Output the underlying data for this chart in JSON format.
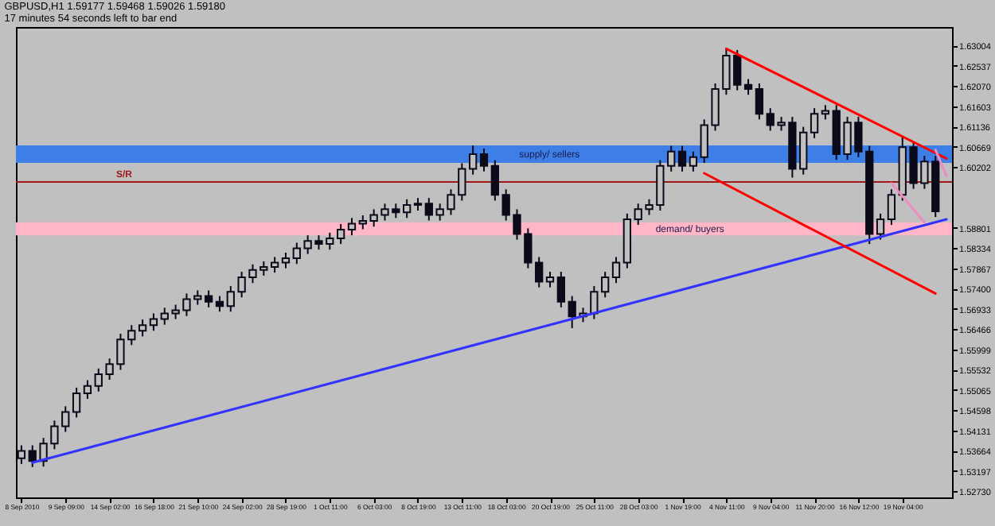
{
  "chart_data": {
    "type": "candlestick",
    "title": "GBPUSD,H1  1.59177 1.59468 1.59026 1.59180",
    "subtitle": "17 minutes 54 seconds left to bar end",
    "categories": [
      "8 Sep 2010",
      null,
      null,
      null,
      "9 Sep 09:00",
      null,
      null,
      null,
      "14 Sep 02:00",
      null,
      null,
      null,
      "16 Sep 18:00",
      null,
      null,
      null,
      "21 Sep 10:00",
      null,
      null,
      null,
      "24 Sep 02:00",
      null,
      null,
      null,
      "28 Sep 19:00",
      null,
      null,
      null,
      "1 Oct 11:00",
      null,
      null,
      null,
      "6 Oct 03:00",
      null,
      null,
      null,
      "8 Oct 19:00",
      null,
      null,
      null,
      "13 Oct 11:00",
      null,
      null,
      null,
      "18 Oct 03:00",
      null,
      null,
      null,
      "20 Oct 19:00",
      null,
      null,
      null,
      "25 Oct 11:00",
      null,
      null,
      null,
      "28 Oct 03:00",
      null,
      null,
      null,
      "1 Nov 19:00",
      null,
      null,
      null,
      "4 Nov 11:00",
      null,
      null,
      null,
      "9 Nov 04:00",
      null,
      null,
      null,
      "11 Nov 20:00",
      null,
      null,
      null,
      "16 Nov 12:00",
      null,
      null,
      null,
      "19 Nov 04:00",
      null,
      null,
      null,
      null
    ],
    "color": "#0a0a1a",
    "ohlc": [
      [
        1.5349,
        1.5379,
        1.5336,
        1.5366
      ],
      [
        1.5366,
        1.5379,
        1.5329,
        1.5343
      ],
      [
        1.5343,
        1.5396,
        1.533,
        1.5383
      ],
      [
        1.5383,
        1.5436,
        1.537,
        1.5423
      ],
      [
        1.5423,
        1.5469,
        1.541,
        1.5456
      ],
      [
        1.5456,
        1.5512,
        1.5443,
        1.5499
      ],
      [
        1.5499,
        1.5529,
        1.5486,
        1.5516
      ],
      [
        1.5516,
        1.5556,
        1.5503,
        1.5543
      ],
      [
        1.5543,
        1.5579,
        1.553,
        1.5566
      ],
      [
        1.5566,
        1.5636,
        1.5553,
        1.5623
      ],
      [
        1.5623,
        1.5656,
        1.561,
        1.5643
      ],
      [
        1.5643,
        1.5669,
        1.563,
        1.5656
      ],
      [
        1.5656,
        1.5683,
        1.5643,
        1.567
      ],
      [
        1.567,
        1.5696,
        1.5657,
        1.5683
      ],
      [
        1.5683,
        1.5703,
        1.567,
        1.569
      ],
      [
        1.569,
        1.5729,
        1.5677,
        1.5716
      ],
      [
        1.5716,
        1.5736,
        1.5703,
        1.5723
      ],
      [
        1.5723,
        1.5736,
        1.5697,
        1.571
      ],
      [
        1.571,
        1.5723,
        1.5687,
        1.57
      ],
      [
        1.57,
        1.5746,
        1.5687,
        1.5733
      ],
      [
        1.5733,
        1.5779,
        1.572,
        1.5766
      ],
      [
        1.5766,
        1.5796,
        1.5753,
        1.5783
      ],
      [
        1.5783,
        1.5803,
        1.577,
        1.579
      ],
      [
        1.579,
        1.5813,
        1.5777,
        1.58
      ],
      [
        1.58,
        1.5823,
        1.5787,
        1.581
      ],
      [
        1.581,
        1.5846,
        1.5797,
        1.5833
      ],
      [
        1.5833,
        1.5863,
        1.582,
        1.585
      ],
      [
        1.585,
        1.5863,
        1.583,
        1.5843
      ],
      [
        1.5843,
        1.5869,
        1.583,
        1.5856
      ],
      [
        1.5856,
        1.5889,
        1.5843,
        1.5876
      ],
      [
        1.5876,
        1.5903,
        1.5863,
        1.589
      ],
      [
        1.589,
        1.5909,
        1.5877,
        1.5896
      ],
      [
        1.5896,
        1.5923,
        1.5883,
        1.591
      ],
      [
        1.591,
        1.5936,
        1.5897,
        1.5923
      ],
      [
        1.5923,
        1.5936,
        1.5903,
        1.5916
      ],
      [
        1.5916,
        1.5946,
        1.5903,
        1.5933
      ],
      [
        1.5933,
        1.5949,
        1.592,
        1.5936
      ],
      [
        1.5936,
        1.5949,
        1.5897,
        1.591
      ],
      [
        1.591,
        1.5936,
        1.5897,
        1.5923
      ],
      [
        1.5923,
        1.5969,
        1.591,
        1.5956
      ],
      [
        1.5956,
        1.6029,
        1.5943,
        1.6016
      ],
      [
        1.6016,
        1.607,
        1.6003,
        1.605
      ],
      [
        1.605,
        1.6063,
        1.601,
        1.6023
      ],
      [
        1.6023,
        1.6036,
        1.5943,
        1.5956
      ],
      [
        1.5956,
        1.5969,
        1.5897,
        1.591
      ],
      [
        1.591,
        1.5923,
        1.5853,
        1.5866
      ],
      [
        1.5866,
        1.5879,
        1.5787,
        1.58
      ],
      [
        1.58,
        1.5813,
        1.5743,
        1.5756
      ],
      [
        1.5756,
        1.5779,
        1.5743,
        1.5766
      ],
      [
        1.5766,
        1.5779,
        1.5697,
        1.571
      ],
      [
        1.571,
        1.5723,
        1.5649,
        1.5676
      ],
      [
        1.5676,
        1.5696,
        1.5663,
        1.5683
      ],
      [
        1.5683,
        1.5746,
        1.567,
        1.5733
      ],
      [
        1.5733,
        1.5779,
        1.572,
        1.5766
      ],
      [
        1.5766,
        1.5813,
        1.5753,
        1.58
      ],
      [
        1.58,
        1.5913,
        1.5787,
        1.59
      ],
      [
        1.59,
        1.5936,
        1.5887,
        1.5923
      ],
      [
        1.5923,
        1.5946,
        1.591,
        1.5933
      ],
      [
        1.5933,
        1.6036,
        1.592,
        1.6023
      ],
      [
        1.6023,
        1.6069,
        1.601,
        1.6056
      ],
      [
        1.6056,
        1.6069,
        1.601,
        1.6023
      ],
      [
        1.6023,
        1.6056,
        1.601,
        1.6043
      ],
      [
        1.6043,
        1.613,
        1.603,
        1.6117
      ],
      [
        1.6117,
        1.6213,
        1.6104,
        1.62
      ],
      [
        1.62,
        1.6293,
        1.6187,
        1.6277
      ],
      [
        1.6277,
        1.629,
        1.6197,
        1.621
      ],
      [
        1.621,
        1.6223,
        1.6187,
        1.62
      ],
      [
        1.62,
        1.6213,
        1.613,
        1.6143
      ],
      [
        1.6143,
        1.6156,
        1.6104,
        1.6117
      ],
      [
        1.6117,
        1.6136,
        1.6104,
        1.6123
      ],
      [
        1.6123,
        1.6136,
        1.5996,
        1.6016
      ],
      [
        1.6016,
        1.6113,
        1.6003,
        1.61
      ],
      [
        1.61,
        1.6156,
        1.6087,
        1.6143
      ],
      [
        1.6143,
        1.6163,
        1.613,
        1.615
      ],
      [
        1.615,
        1.6163,
        1.6037,
        1.605
      ],
      [
        1.605,
        1.6136,
        1.6037,
        1.6123
      ],
      [
        1.6123,
        1.6136,
        1.6043,
        1.6056
      ],
      [
        1.6056,
        1.6069,
        1.5843,
        1.5866
      ],
      [
        1.5866,
        1.5913,
        1.5853,
        1.59
      ],
      [
        1.59,
        1.5969,
        1.5887,
        1.5956
      ],
      [
        1.5956,
        1.609,
        1.5943,
        1.6066
      ],
      [
        1.6066,
        1.6079,
        1.597,
        1.5983
      ],
      [
        1.5983,
        1.6046,
        1.597,
        1.6033
      ],
      [
        1.6033,
        1.6046,
        1.5905,
        1.5918
      ],
      null
    ],
    "series": [
      {
        "type": "line",
        "color": "#3333ff",
        "values": [
          null,
          1.5339,
          null,
          null,
          null,
          null,
          null,
          null,
          null,
          null,
          null,
          null,
          null,
          null,
          null,
          null,
          null,
          null,
          null,
          null,
          null,
          null,
          null,
          null,
          null,
          null,
          null,
          null,
          null,
          null,
          null,
          null,
          null,
          null,
          null,
          null,
          null,
          null,
          null,
          null,
          null,
          null,
          null,
          null,
          null,
          null,
          null,
          null,
          null,
          null,
          null,
          null,
          null,
          null,
          null,
          null,
          null,
          null,
          null,
          null,
          null,
          null,
          null,
          null,
          null,
          null,
          null,
          null,
          null,
          null,
          null,
          null,
          null,
          null,
          null,
          null,
          null,
          null,
          null,
          null,
          null,
          null,
          null,
          null,
          1.59
        ]
      },
      {
        "type": "line",
        "color": "#ff0000",
        "values": [
          null,
          null,
          null,
          null,
          null,
          null,
          null,
          null,
          null,
          null,
          null,
          null,
          null,
          null,
          null,
          null,
          null,
          null,
          null,
          null,
          null,
          null,
          null,
          null,
          null,
          null,
          null,
          null,
          null,
          null,
          null,
          null,
          null,
          null,
          null,
          null,
          null,
          null,
          null,
          null,
          null,
          null,
          null,
          null,
          null,
          null,
          null,
          null,
          null,
          null,
          null,
          null,
          null,
          null,
          null,
          null,
          null,
          null,
          null,
          null,
          null,
          null,
          null,
          null,
          1.6293,
          null,
          null,
          null,
          null,
          null,
          null,
          null,
          null,
          null,
          null,
          null,
          null,
          null,
          null,
          null,
          null,
          null,
          null,
          null,
          1.604
        ]
      },
      {
        "type": "line",
        "color": "#ff0000",
        "values": [
          null,
          null,
          null,
          null,
          null,
          null,
          null,
          null,
          null,
          null,
          null,
          null,
          null,
          null,
          null,
          null,
          null,
          null,
          null,
          null,
          null,
          null,
          null,
          null,
          null,
          null,
          null,
          null,
          null,
          null,
          null,
          null,
          null,
          null,
          null,
          null,
          null,
          null,
          null,
          null,
          null,
          null,
          null,
          null,
          null,
          null,
          null,
          null,
          null,
          null,
          null,
          null,
          null,
          null,
          null,
          null,
          null,
          null,
          null,
          null,
          null,
          null,
          1.6006,
          null,
          null,
          null,
          null,
          null,
          null,
          null,
          null,
          null,
          null,
          null,
          null,
          null,
          null,
          null,
          null,
          null,
          null,
          null,
          null,
          1.5729,
          null
        ]
      },
      {
        "type": "line",
        "color": "#f08cc0",
        "values": [
          null,
          null,
          null,
          null,
          null,
          null,
          null,
          null,
          null,
          null,
          null,
          null,
          null,
          null,
          null,
          null,
          null,
          null,
          null,
          null,
          null,
          null,
          null,
          null,
          null,
          null,
          null,
          null,
          null,
          null,
          null,
          null,
          null,
          null,
          null,
          null,
          null,
          null,
          null,
          null,
          null,
          null,
          null,
          null,
          null,
          null,
          null,
          null,
          null,
          null,
          null,
          null,
          null,
          null,
          null,
          null,
          null,
          null,
          null,
          null,
          null,
          null,
          null,
          null,
          null,
          null,
          null,
          null,
          null,
          null,
          null,
          null,
          null,
          null,
          null,
          null,
          null,
          null,
          null,
          1.5983,
          null,
          null,
          1.5893,
          null,
          null
        ]
      },
      {
        "type": "line",
        "color": "#e88fbf",
        "values": [
          null,
          null,
          null,
          null,
          null,
          null,
          null,
          null,
          null,
          null,
          null,
          null,
          null,
          null,
          null,
          null,
          null,
          null,
          null,
          null,
          null,
          null,
          null,
          null,
          null,
          null,
          null,
          null,
          null,
          null,
          null,
          null,
          null,
          null,
          null,
          null,
          null,
          null,
          null,
          null,
          null,
          null,
          null,
          null,
          null,
          null,
          null,
          null,
          null,
          null,
          null,
          null,
          null,
          null,
          null,
          null,
          null,
          null,
          null,
          null,
          null,
          null,
          null,
          null,
          null,
          null,
          null,
          null,
          null,
          null,
          null,
          null,
          null,
          null,
          null,
          null,
          null,
          null,
          null,
          null,
          null,
          null,
          null,
          1.606,
          1.6
        ]
      }
    ],
    "bands": [
      {
        "axis": "y",
        "from": 1.603,
        "to": 1.607,
        "label": "supply/ sellers",
        "color": "#3d7fe6"
      },
      {
        "axis": "y",
        "from": 1.5863,
        "to": 1.5893,
        "label": "demand/ buyers",
        "color": "#ffb6c6"
      }
    ],
    "ref_lines": [
      {
        "axis": "y",
        "value": 1.5986,
        "label": "S/R",
        "color": "#a01818"
      }
    ],
    "ylim": [
      1.5259,
      1.6343
    ],
    "yticks": [
      {
        "value": 1.5273,
        "label": "1.52730"
      },
      {
        "value": 1.53197,
        "label": "1.53197"
      },
      {
        "value": 1.53664,
        "label": "1.53664"
      },
      {
        "value": 1.54131,
        "label": "1.54131"
      },
      {
        "value": 1.54598,
        "label": "1.54598"
      },
      {
        "value": 1.55065,
        "label": "1.55065"
      },
      {
        "value": 1.55532,
        "label": "1.55532"
      },
      {
        "value": 1.55999,
        "label": "1.55999"
      },
      {
        "value": 1.56466,
        "label": "1.56466"
      },
      {
        "value": 1.56933,
        "label": "1.56933"
      },
      {
        "value": 1.574,
        "label": "1.57400"
      },
      {
        "value": 1.57867,
        "label": "1.57867"
      },
      {
        "value": 1.58334,
        "label": "1.58334"
      },
      {
        "value": 1.58801,
        "label": "1.58801"
      },
      {
        "value": 1.60202,
        "label": "1.60202"
      },
      {
        "value": 1.60669,
        "label": "1.60669"
      },
      {
        "value": 1.61136,
        "label": "1.61136"
      },
      {
        "value": 1.61603,
        "label": "1.61603"
      },
      {
        "value": 1.6207,
        "label": "1.62070"
      },
      {
        "value": 1.62537,
        "label": "1.62537"
      },
      {
        "value": 1.63004,
        "label": "1.63004"
      }
    ]
  }
}
